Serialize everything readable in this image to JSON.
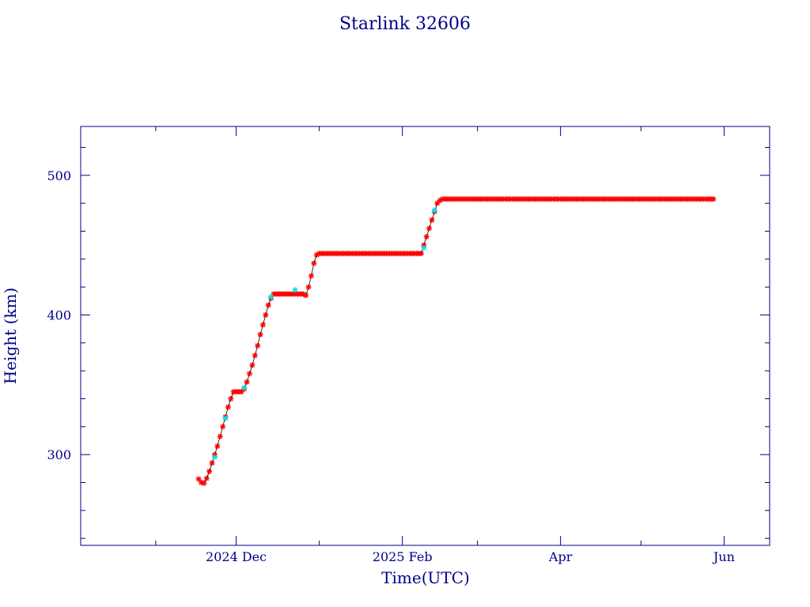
{
  "chart_data": {
    "type": "scatter",
    "title": "Starlink 32606",
    "xlabel": "Time(UTC)",
    "ylabel": "Height (km)",
    "x_range": [
      "2024-10-04",
      "2025-06-18"
    ],
    "ylim": [
      235,
      535
    ],
    "y_major_ticks": [
      300,
      400,
      500
    ],
    "y_minor_step": 20,
    "x_major_ticks": [
      {
        "date": "2024-12-01",
        "label": "2024 Dec"
      },
      {
        "date": "2025-02-01",
        "label": "2025 Feb"
      },
      {
        "date": "2025-04-01",
        "label": "Apr"
      },
      {
        "date": "2025-06-01",
        "label": "Jun"
      }
    ],
    "x_minor_ticks": [
      "2024-11-01",
      "2025-01-01",
      "2025-03-01",
      "2025-05-01"
    ],
    "colors": {
      "axis": "#00008b",
      "marker_primary": "#ff0000",
      "marker_secondary": "#00e5ee",
      "line": "#000000"
    },
    "series": [
      {
        "marker": "star",
        "points": [
          [
            "2024-11-17",
            282.5
          ],
          [
            "2024-11-18",
            280.0
          ],
          [
            "2024-11-19",
            279.5
          ],
          [
            "2024-11-20",
            283.0
          ],
          [
            "2024-11-21",
            288.0
          ],
          [
            "2024-11-22",
            294.0
          ],
          [
            "2024-11-23",
            300.0
          ],
          [
            "2024-11-24",
            306.0
          ],
          [
            "2024-11-25",
            313.0
          ],
          [
            "2024-11-26",
            320.0
          ],
          [
            "2024-11-27",
            327.0
          ],
          [
            "2024-11-28",
            334.0
          ],
          [
            "2024-11-29",
            340.0
          ],
          [
            "2024-11-30",
            345.0
          ],
          [
            "2024-12-01",
            345.0
          ],
          [
            "2024-12-02",
            345.0
          ],
          [
            "2024-12-03",
            345.0
          ],
          [
            "2024-12-04",
            347.0
          ],
          [
            "2024-12-05",
            352.0
          ],
          [
            "2024-12-06",
            358.0
          ],
          [
            "2024-12-07",
            364.0
          ],
          [
            "2024-12-08",
            371.0
          ],
          [
            "2024-12-09",
            378.0
          ],
          [
            "2024-12-10",
            386.0
          ],
          [
            "2024-12-11",
            393.0
          ],
          [
            "2024-12-12",
            400.0
          ],
          [
            "2024-12-13",
            407.0
          ],
          [
            "2024-12-14",
            412.0
          ],
          [
            "2024-12-15",
            415.0
          ],
          [
            "2024-12-16",
            415.0
          ],
          [
            "2024-12-17",
            415.0
          ],
          [
            "2024-12-18",
            415.0
          ],
          [
            "2024-12-19",
            415.0
          ],
          [
            "2024-12-20",
            415.0
          ],
          [
            "2024-12-21",
            415.0
          ],
          [
            "2024-12-22",
            415.0
          ],
          [
            "2024-12-23",
            415.0
          ],
          [
            "2024-12-24",
            415.0
          ],
          [
            "2024-12-25",
            415.0
          ],
          [
            "2024-12-26",
            415.0
          ],
          [
            "2024-12-27",
            414.0
          ],
          [
            "2024-12-28",
            420.0
          ],
          [
            "2024-12-29",
            428.0
          ],
          [
            "2024-12-30",
            437.0
          ],
          [
            "2024-12-31",
            443.0
          ],
          [
            "2025-01-01",
            444.0
          ],
          [
            "2025-01-02",
            444.0
          ],
          [
            "2025-01-04",
            444.0
          ],
          [
            "2025-01-06",
            444.0
          ],
          [
            "2025-01-08",
            444.0
          ],
          [
            "2025-01-10",
            444.0
          ],
          [
            "2025-01-12",
            444.0
          ],
          [
            "2025-01-14",
            444.0
          ],
          [
            "2025-01-16",
            444.0
          ],
          [
            "2025-01-18",
            444.0
          ],
          [
            "2025-01-20",
            444.0
          ],
          [
            "2025-01-22",
            444.0
          ],
          [
            "2025-01-24",
            444.0
          ],
          [
            "2025-01-26",
            444.0
          ],
          [
            "2025-01-28",
            444.0
          ],
          [
            "2025-01-30",
            444.0
          ],
          [
            "2025-02-01",
            444.0
          ],
          [
            "2025-02-03",
            444.0
          ],
          [
            "2025-02-05",
            444.0
          ],
          [
            "2025-02-07",
            444.0
          ],
          [
            "2025-02-08",
            444.0
          ],
          [
            "2025-02-09",
            450.0
          ],
          [
            "2025-02-10",
            456.0
          ],
          [
            "2025-02-11",
            462.0
          ],
          [
            "2025-02-12",
            468.0
          ],
          [
            "2025-02-13",
            474.0
          ],
          [
            "2025-02-14",
            480.0
          ],
          [
            "2025-02-15",
            482.0
          ],
          [
            "2025-02-16",
            483.0
          ],
          [
            "2025-02-18",
            483.0
          ],
          [
            "2025-02-20",
            483.0
          ],
          [
            "2025-02-22",
            483.0
          ],
          [
            "2025-02-24",
            483.0
          ],
          [
            "2025-02-26",
            483.0
          ],
          [
            "2025-02-28",
            483.0
          ],
          [
            "2025-03-02",
            483.0
          ],
          [
            "2025-03-04",
            483.0
          ],
          [
            "2025-03-06",
            483.0
          ],
          [
            "2025-03-08",
            483.0
          ],
          [
            "2025-03-10",
            483.0
          ],
          [
            "2025-03-12",
            483.0
          ],
          [
            "2025-03-14",
            483.0
          ],
          [
            "2025-03-16",
            483.0
          ],
          [
            "2025-03-18",
            483.0
          ],
          [
            "2025-03-20",
            483.0
          ],
          [
            "2025-03-22",
            483.0
          ],
          [
            "2025-03-24",
            483.0
          ],
          [
            "2025-03-26",
            483.0
          ],
          [
            "2025-03-28",
            483.0
          ],
          [
            "2025-03-30",
            483.0
          ],
          [
            "2025-04-01",
            483.0
          ],
          [
            "2025-04-03",
            483.0
          ],
          [
            "2025-04-05",
            483.0
          ],
          [
            "2025-04-07",
            483.0
          ],
          [
            "2025-04-09",
            483.0
          ],
          [
            "2025-04-11",
            483.0
          ],
          [
            "2025-04-13",
            483.0
          ],
          [
            "2025-04-15",
            483.0
          ],
          [
            "2025-04-17",
            483.0
          ],
          [
            "2025-04-19",
            483.0
          ],
          [
            "2025-04-21",
            483.0
          ],
          [
            "2025-04-23",
            483.0
          ],
          [
            "2025-04-25",
            483.0
          ],
          [
            "2025-04-27",
            483.0
          ],
          [
            "2025-04-29",
            483.0
          ],
          [
            "2025-05-01",
            483.0
          ],
          [
            "2025-05-03",
            483.0
          ],
          [
            "2025-05-05",
            483.0
          ],
          [
            "2025-05-07",
            483.0
          ],
          [
            "2025-05-09",
            483.0
          ],
          [
            "2025-05-11",
            483.0
          ],
          [
            "2025-05-13",
            483.0
          ],
          [
            "2025-05-15",
            483.0
          ],
          [
            "2025-05-17",
            483.0
          ],
          [
            "2025-05-19",
            483.0
          ],
          [
            "2025-05-21",
            483.0
          ],
          [
            "2025-05-23",
            483.0
          ],
          [
            "2025-05-25",
            483.0
          ],
          [
            "2025-05-27",
            483.0
          ],
          [
            "2025-05-28",
            483.0
          ]
        ]
      },
      {
        "marker": "star",
        "points": [
          [
            "2024-11-23",
            298.0
          ],
          [
            "2024-11-27",
            326.0
          ],
          [
            "2024-12-04",
            348.0
          ],
          [
            "2024-12-14",
            413.0
          ],
          [
            "2024-12-23",
            418.0
          ],
          [
            "2025-02-09",
            448.0
          ],
          [
            "2025-02-13",
            475.0
          ]
        ]
      }
    ]
  }
}
